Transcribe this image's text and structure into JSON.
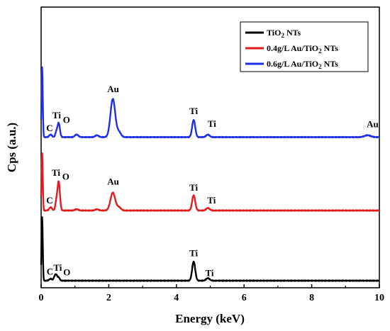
{
  "chart_data": {
    "type": "line",
    "xlabel": "Energy (keV)",
    "ylabel": "Cps (a.u.)",
    "xlim": [
      0,
      10
    ],
    "x_ticks": [
      0,
      2,
      4,
      6,
      8,
      10
    ],
    "grid": false,
    "legend_position": "top-right",
    "series": [
      {
        "name_parts": [
          "TiO",
          "2",
          " NTs"
        ],
        "color": "#000000",
        "baseline": 0.0,
        "peaks": [
          {
            "x": 0.03,
            "h": 100,
            "w": 0.018
          },
          {
            "x": 0.28,
            "h": 3,
            "w": 0.04
          },
          {
            "x": 0.4,
            "h": 6,
            "w": 0.03
          },
          {
            "x": 0.45,
            "h": 8,
            "w": 0.03
          },
          {
            "x": 0.52,
            "h": 5,
            "w": 0.03
          },
          {
            "x": 4.51,
            "h": 30,
            "w": 0.045
          },
          {
            "x": 4.93,
            "h": 4,
            "w": 0.05
          }
        ],
        "labels": [
          {
            "text": "C",
            "x": 0.26,
            "y": 6
          },
          {
            "text": "Ti",
            "x": 0.49,
            "y": 12
          },
          {
            "text": "O",
            "x": 0.76,
            "y": 5
          },
          {
            "text": "Ti",
            "x": 4.51,
            "y": 35
          },
          {
            "text": "Ti",
            "x": 4.98,
            "y": 4
          }
        ]
      },
      {
        "name_parts": [
          "0.4g/L Au/TiO",
          "2",
          " NTs"
        ],
        "color": "#e41a1c",
        "baseline": 110,
        "peaks": [
          {
            "x": 0.03,
            "h": 90,
            "w": 0.018
          },
          {
            "x": 0.28,
            "h": 5,
            "w": 0.04
          },
          {
            "x": 0.45,
            "h": 14,
            "w": 0.03
          },
          {
            "x": 0.52,
            "h": 45,
            "w": 0.035
          },
          {
            "x": 1.05,
            "h": 2,
            "w": 0.05
          },
          {
            "x": 1.65,
            "h": 2,
            "w": 0.05
          },
          {
            "x": 2.12,
            "h": 28,
            "w": 0.07
          },
          {
            "x": 2.3,
            "h": 5,
            "w": 0.06
          },
          {
            "x": 4.51,
            "h": 24,
            "w": 0.045
          },
          {
            "x": 4.93,
            "h": 4,
            "w": 0.05
          }
        ],
        "labels": [
          {
            "text": "C",
            "x": 0.25,
            "y": 8
          },
          {
            "text": "Ti",
            "x": 0.44,
            "y": 51
          },
          {
            "text": "O",
            "x": 0.73,
            "y": 45
          },
          {
            "text": "Au",
            "x": 2.13,
            "y": 37
          },
          {
            "text": "Ti",
            "x": 4.51,
            "y": 28
          },
          {
            "text": "Ti",
            "x": 5.04,
            "y": 8
          }
        ]
      },
      {
        "name_parts": [
          "0.6g/L Au/TiO",
          "2",
          " NTs"
        ],
        "color": "#1f2fe6",
        "baseline": 225,
        "peaks": [
          {
            "x": 0.03,
            "h": 110,
            "w": 0.018
          },
          {
            "x": 0.28,
            "h": 4,
            "w": 0.04
          },
          {
            "x": 0.45,
            "h": 8,
            "w": 0.03
          },
          {
            "x": 0.52,
            "h": 22,
            "w": 0.035
          },
          {
            "x": 1.05,
            "h": 4,
            "w": 0.05
          },
          {
            "x": 1.65,
            "h": 3,
            "w": 0.05
          },
          {
            "x": 2.12,
            "h": 60,
            "w": 0.07
          },
          {
            "x": 2.3,
            "h": 8,
            "w": 0.06
          },
          {
            "x": 4.51,
            "h": 27,
            "w": 0.045
          },
          {
            "x": 4.93,
            "h": 4,
            "w": 0.05
          },
          {
            "x": 9.65,
            "h": 3,
            "w": 0.09
          }
        ],
        "labels": [
          {
            "text": "C",
            "x": 0.25,
            "y": 6
          },
          {
            "text": "Ti",
            "x": 0.46,
            "y": 26
          },
          {
            "text": "O",
            "x": 0.75,
            "y": 19
          },
          {
            "text": "Au",
            "x": 2.13,
            "y": 67
          },
          {
            "text": "Ti",
            "x": 4.51,
            "y": 33
          },
          {
            "text": "Ti",
            "x": 5.05,
            "y": 13
          },
          {
            "text": "Au",
            "x": 9.8,
            "y": 12
          }
        ]
      }
    ]
  }
}
